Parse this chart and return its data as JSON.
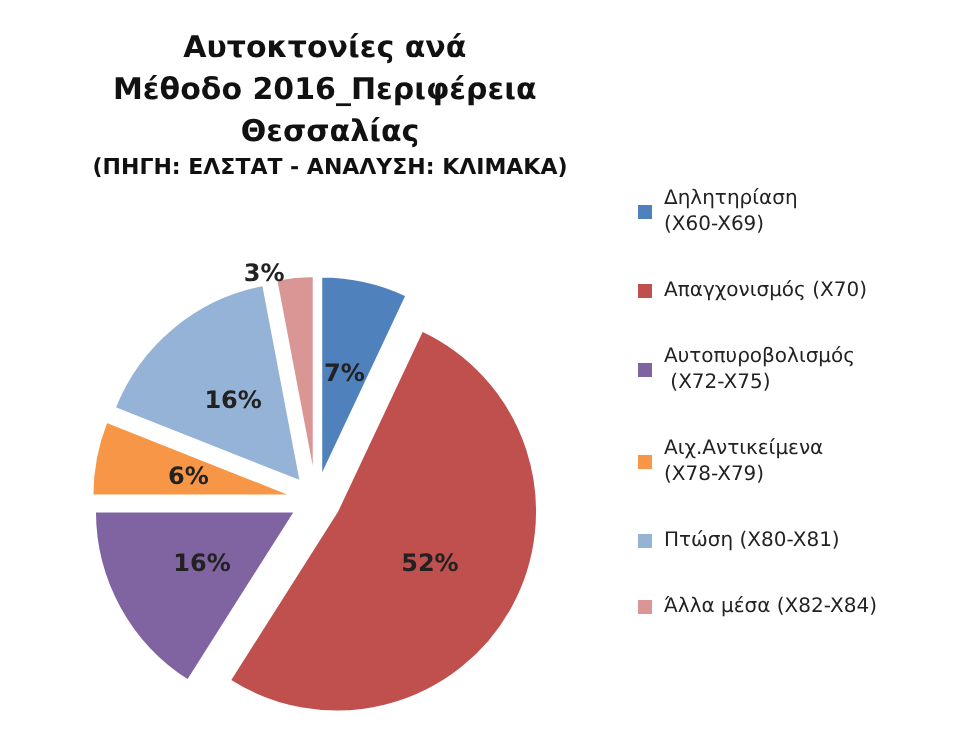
{
  "chart_data": {
    "type": "pie",
    "title": "Αυτοκτονίες ανά Μέθοδο 2016_Περιφέρεια Θεσσαλίας",
    "subtitle": "(ΠΗΓΗ: ΕΛΣΤΑΤ - ΑΝΑΛΥΣΗ: ΚΛΙΜΑΚΑ)",
    "categories": [
      "Δηλητηρίαση (X60-X69)",
      "Απαγχονισμός (X70)",
      "Αυτοπυροβολισμός (X72-X75)",
      "Αιχ.Αντικείμενα (X78-X79)",
      "Πτώση (X80-X81)",
      "Άλλα μέσα (X82-X84)"
    ],
    "values": [
      7,
      52,
      16,
      6,
      16,
      3
    ],
    "colors": [
      "#4f81bd",
      "#c0504d",
      "#8064a2",
      "#f79646",
      "#95b3d7",
      "#d99694"
    ],
    "value_labels": [
      "7%",
      "52%",
      "16%",
      "6%",
      "16%",
      "3%"
    ],
    "legend": "right"
  }
}
